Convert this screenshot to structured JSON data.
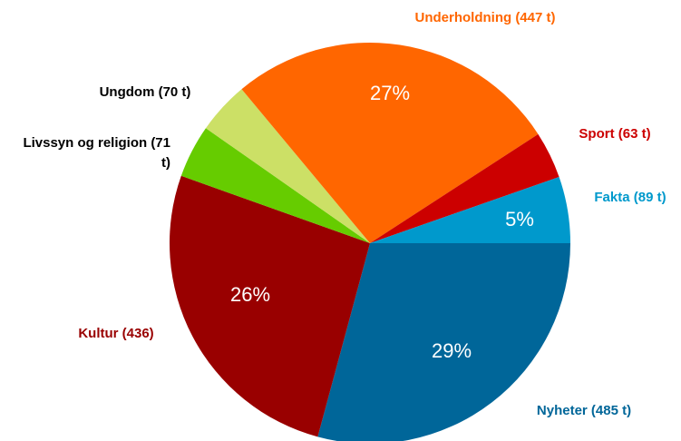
{
  "chart_data": {
    "type": "pie",
    "categories": [
      "Nyheter (485 t)",
      "Kultur (436)",
      "Livssyn og religion (71 t)",
      "Ungdom (70 t)",
      "Underholdning (447 t)",
      "Sport (63 t)",
      "Fakta (89 t)"
    ],
    "values": [
      485,
      436,
      71,
      70,
      447,
      63,
      89
    ],
    "percent_labels": [
      "29%",
      "26%",
      null,
      null,
      "27%",
      null,
      "5%"
    ],
    "colors": [
      "#006699",
      "#990000",
      "#66cc00",
      "#cce066",
      "#ff6600",
      "#cc0000",
      "#0099cc"
    ],
    "label_colors": [
      "#006699",
      "#990000",
      "#000000",
      "#000000",
      "#ff6600",
      "#cc0000",
      "#0099cc"
    ]
  }
}
